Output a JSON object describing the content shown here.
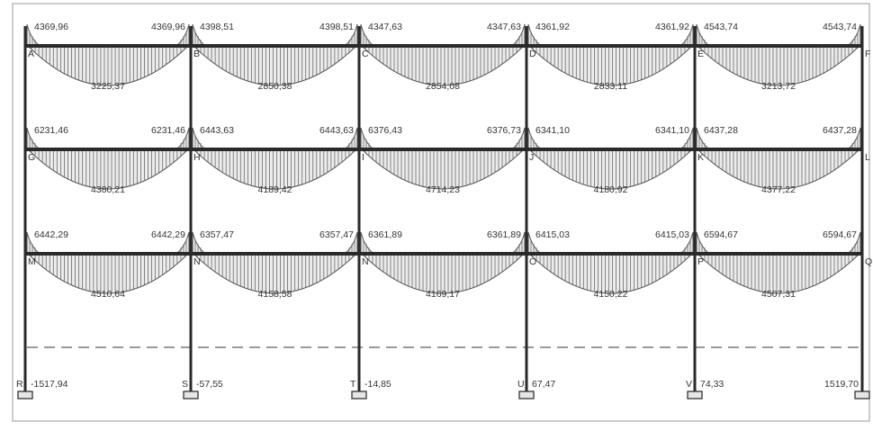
{
  "columns_x_labels": [
    "A",
    "B",
    "C",
    "D",
    "E",
    "F"
  ],
  "levels": [
    {
      "node_labels": [
        "A",
        "B",
        "C",
        "D",
        "E",
        "F"
      ],
      "spans": [
        {
          "left_moment": "4369,96",
          "right_moment": "4369,96",
          "mid_moment": "3225,37"
        },
        {
          "left_moment": "4398,51",
          "right_moment": "4398,51",
          "mid_moment": "2850,38"
        },
        {
          "left_moment": "4347,63",
          "right_moment": "4347,63",
          "mid_moment": "2854,08"
        },
        {
          "left_moment": "4361,92",
          "right_moment": "4361,92",
          "mid_moment": "2833,11"
        },
        {
          "left_moment": "4543,74",
          "right_moment": "4543,74",
          "mid_moment": "3213,72"
        }
      ]
    },
    {
      "node_labels": [
        "G",
        "H",
        "I",
        "J",
        "K",
        "L"
      ],
      "spans": [
        {
          "left_moment": "6231,46",
          "right_moment": "6231,46",
          "mid_moment": "4380,21"
        },
        {
          "left_moment": "6443,63",
          "right_moment": "6443,63",
          "mid_moment": "4189,42"
        },
        {
          "left_moment": "6376,43",
          "right_moment": "6376,73",
          "mid_moment": "4714,23"
        },
        {
          "left_moment": "6341,10",
          "right_moment": "6341,10",
          "mid_moment": "4180,92"
        },
        {
          "left_moment": "6437,28",
          "right_moment": "6437,28",
          "mid_moment": "4377,22"
        }
      ]
    },
    {
      "node_labels": [
        "M",
        "N",
        "N",
        "O",
        "P",
        "Q"
      ],
      "spans": [
        {
          "left_moment": "6442,29",
          "right_moment": "6442,29",
          "mid_moment": "4510,64"
        },
        {
          "left_moment": "6357,47",
          "right_moment": "6357,47",
          "mid_moment": "4158,58"
        },
        {
          "left_moment": "6361,89",
          "right_moment": "6361,89",
          "mid_moment": "4169,17"
        },
        {
          "left_moment": "6415,03",
          "right_moment": "6415,03",
          "mid_moment": "4150,22"
        },
        {
          "left_moment": "6594,67",
          "right_moment": "6594,67",
          "mid_moment": "4507,31"
        }
      ]
    }
  ],
  "supports": [
    {
      "label": "R",
      "reaction": "-1517,94"
    },
    {
      "label": "S",
      "reaction": "-57,55"
    },
    {
      "label": "T",
      "reaction": "-14,85"
    },
    {
      "label": "U",
      "reaction": "67,47"
    },
    {
      "label": "V",
      "reaction": "74,33"
    },
    {
      "label": "",
      "reaction": "1519,70"
    }
  ]
}
